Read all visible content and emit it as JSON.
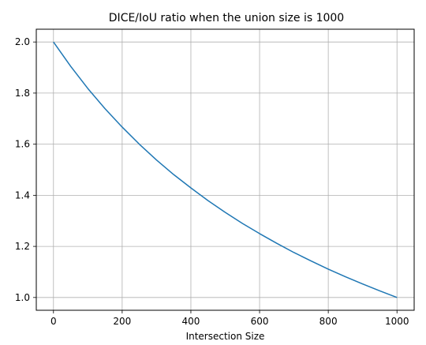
{
  "chart_data": {
    "type": "line",
    "title": "DICE/IoU ratio when the union size is 1000",
    "xlabel": "Intersection Size",
    "ylabel": "",
    "xlim": [
      -50,
      1050
    ],
    "ylim": [
      0.95,
      2.05
    ],
    "xticks": [
      0,
      200,
      400,
      600,
      800,
      1000
    ],
    "yticks": [
      1.0,
      1.2,
      1.4,
      1.6,
      1.8,
      2.0
    ],
    "x_tick_labels": [
      "0",
      "200",
      "400",
      "600",
      "800",
      "1000"
    ],
    "y_tick_labels": [
      "1.0",
      "1.2",
      "1.4",
      "1.6",
      "1.8",
      "2.0"
    ],
    "grid": true,
    "line_color": "#1f77b4",
    "series": [
      {
        "x": [
          0,
          50,
          100,
          150,
          200,
          250,
          300,
          350,
          400,
          450,
          500,
          550,
          600,
          650,
          700,
          750,
          800,
          850,
          900,
          950,
          1000
        ],
        "values": [
          2.0,
          1.905,
          1.818,
          1.739,
          1.667,
          1.6,
          1.538,
          1.481,
          1.429,
          1.379,
          1.333,
          1.29,
          1.25,
          1.212,
          1.176,
          1.143,
          1.111,
          1.081,
          1.053,
          1.026,
          1.0
        ]
      }
    ]
  }
}
